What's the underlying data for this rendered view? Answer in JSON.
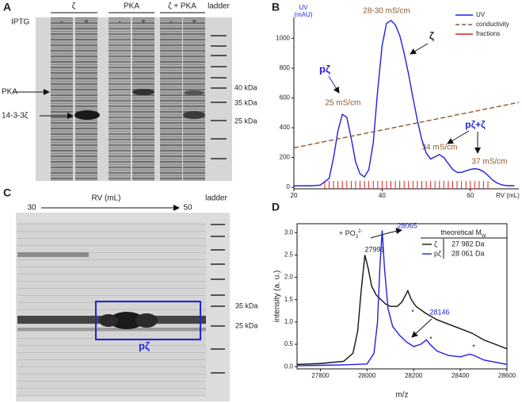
{
  "figure": {
    "panel_a": {
      "letter": "A",
      "groups": [
        "ζ",
        "PKA",
        "ζ + PKA"
      ],
      "ladder": "ladder",
      "iptg": "IPTG",
      "signs": [
        "-",
        "+",
        "-",
        "+",
        "-",
        "+"
      ],
      "bands": [
        "PKA",
        "14-3-3ζ"
      ],
      "markers": [
        "40 kDa",
        "35 kDa",
        "25 kDa"
      ]
    },
    "panel_c": {
      "letter": "C",
      "start": "30",
      "axis": "RV (mL)",
      "end": "50",
      "ladder": "ladder",
      "markers": [
        "35 kDa",
        "25 kDa"
      ],
      "box_label": "pζ"
    },
    "panel_b": {
      "letter": "B"
    },
    "panel_d": {
      "letter": "D"
    }
  },
  "chart_data": [
    {
      "type": "line",
      "xlabel": "RV (mL)",
      "ylabel": [
        "UV",
        "(mAU)"
      ],
      "xlim": [
        20,
        71
      ],
      "ylim": [
        -10,
        1140
      ],
      "xticks": [
        20,
        40,
        60
      ],
      "yticks": [
        0,
        200,
        400,
        600,
        800,
        1000
      ],
      "series": [
        {
          "name": "UV",
          "color": "#1f1fe0",
          "style": "solid",
          "x": [
            20,
            24,
            26,
            28,
            29,
            30,
            31,
            32,
            33,
            34,
            35,
            36,
            37,
            38,
            39,
            40,
            41,
            42,
            43,
            44,
            45,
            46,
            47,
            48,
            49,
            50,
            51,
            52,
            53,
            54,
            55,
            56,
            57,
            58,
            59,
            60,
            61,
            62,
            63,
            64,
            65,
            66,
            67,
            68,
            70
          ],
          "values": [
            10,
            10,
            15,
            60,
            200,
            380,
            490,
            470,
            330,
            170,
            90,
            70,
            120,
            300,
            650,
            950,
            1100,
            1120,
            1090,
            1020,
            900,
            760,
            600,
            450,
            320,
            230,
            190,
            205,
            220,
            200,
            160,
            120,
            100,
            100,
            110,
            120,
            125,
            120,
            105,
            80,
            50,
            30,
            18,
            12,
            10
          ]
        },
        {
          "name": "conductivity",
          "color": "#8b5a2b",
          "style": "dashed",
          "x": [
            20,
            71
          ],
          "values": [
            265,
            570
          ]
        },
        {
          "name": "fractions",
          "color": "#e02020",
          "style": "ticks",
          "x": [
            27,
            28,
            29,
            30,
            31,
            32,
            33,
            34,
            35,
            36,
            37,
            38,
            39,
            40,
            41,
            42,
            43,
            44,
            45,
            46,
            47,
            48,
            49,
            50,
            51,
            52,
            53,
            54,
            55,
            56,
            57,
            58,
            59,
            60,
            61,
            62,
            63,
            64
          ]
        }
      ],
      "annotations": [
        "25 mS/cm",
        "28-30 mS/cm",
        "34 mS/cm",
        "37 mS/cm",
        "pζ",
        "ζ",
        "pζ+ζ"
      ]
    },
    {
      "type": "line",
      "xlabel": "m/z",
      "ylabel": "intensity (a. u.)",
      "xlim": [
        27700,
        28600
      ],
      "ylim": [
        -0.05,
        3.2
      ],
      "xticks": [
        27800,
        28000,
        28200,
        28400,
        28600
      ],
      "yticks": [
        {
          "value": 0,
          "label": "0.0"
        },
        0.5,
        {
          "value": 1,
          "label": "1.0"
        },
        1.5,
        {
          "value": 2,
          "label": "2.0"
        },
        2.5,
        {
          "value": 3,
          "label": "3.0"
        }
      ],
      "legend_header": "theoretical M",
      "legend_header_sub": "W",
      "series": [
        {
          "name": "ζ",
          "theoretical": "27 982 Da",
          "color": "#111111",
          "style": "solid",
          "x": [
            27700,
            27800,
            27900,
            27940,
            27960,
            27975,
            27991,
            28005,
            28020,
            28040,
            28060,
            28080,
            28100,
            28130,
            28150,
            28165,
            28175,
            28190,
            28210,
            28250,
            28300,
            28350,
            28400,
            28450,
            28500,
            28550,
            28600
          ],
          "values": [
            0.05,
            0.07,
            0.12,
            0.3,
            0.8,
            1.7,
            2.5,
            2.2,
            1.8,
            1.6,
            1.5,
            1.4,
            1.35,
            1.35,
            1.45,
            1.6,
            1.7,
            1.5,
            1.35,
            1.2,
            1.05,
            0.95,
            0.85,
            0.75,
            0.6,
            0.5,
            0.4
          ]
        },
        {
          "name": "pζ",
          "theoretical": "28 061 Da",
          "color": "#1f1fe0",
          "style": "solid",
          "x": [
            27700,
            27800,
            27900,
            28000,
            28030,
            28045,
            28055,
            28065,
            28075,
            28090,
            28110,
            28140,
            28170,
            28200,
            28230,
            28255,
            28270,
            28300,
            28350,
            28400,
            28440,
            28460,
            28500,
            28550,
            28600
          ],
          "values": [
            0.02,
            0.03,
            0.04,
            0.06,
            0.3,
            1.0,
            2.2,
            3.05,
            2.2,
            1.3,
            0.9,
            0.7,
            0.55,
            0.45,
            0.5,
            0.6,
            0.5,
            0.35,
            0.25,
            0.22,
            0.28,
            0.25,
            0.15,
            0.1,
            0.05
          ]
        }
      ],
      "annotations": [
        "27991",
        "28065",
        "28146",
        "*",
        "*",
        "*"
      ],
      "modification": [
        "+ PO",
        "3",
        "2-"
      ]
    }
  ]
}
